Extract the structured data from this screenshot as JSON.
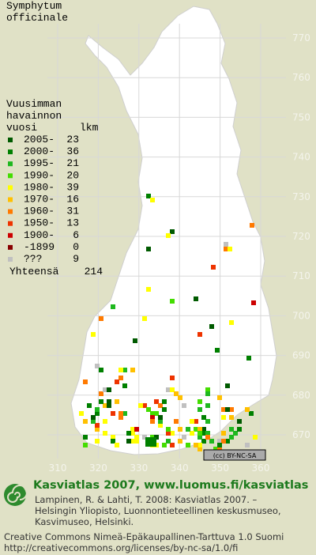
{
  "title": [
    "Symphytum",
    "officinale"
  ],
  "y_grid_labels": [
    770,
    760,
    750,
    740,
    730,
    720,
    710,
    700,
    690,
    680,
    670
  ],
  "x_grid_labels": [
    310,
    320,
    330,
    340,
    350,
    360
  ],
  "legend": {
    "header": [
      "Vuusimman",
      "havainnon",
      "vuosi"
    ],
    "count_header": "lkm",
    "rows": [
      {
        "label": "2005-",
        "count": 23,
        "color": "#005a00"
      },
      {
        "label": "2000-",
        "count": 36,
        "color": "#008000"
      },
      {
        "label": "1995-",
        "count": 21,
        "color": "#1fb81f"
      },
      {
        "label": "1990-",
        "count": 20,
        "color": "#44dd00"
      },
      {
        "label": "1980-",
        "count": 39,
        "color": "#ffff00"
      },
      {
        "label": "1970-",
        "count": 16,
        "color": "#ffc000"
      },
      {
        "label": "1960-",
        "count": 31,
        "color": "#ff7a00"
      },
      {
        "label": "1950-",
        "count": 13,
        "color": "#ee3300"
      },
      {
        "label": "1900-",
        "count": 6,
        "color": "#cc0000"
      },
      {
        "label": "-1899",
        "count": 0,
        "color": "#880000"
      },
      {
        "label": "???",
        "count": 9,
        "color": "#c0c0c0"
      }
    ],
    "total_label": "Yhteensä",
    "total": 214
  },
  "license_badge": "(cc) BY-NC-SA",
  "footer": {
    "heading": "Kasviatlas 2007, www.luomus.fi/kasviatlas",
    "citation": [
      "Lampinen, R. & Lahti, T. 2008: Kasviatlas 2007. –",
      "Helsingin Yliopisto, Luonnontieteellinen keskusmuseo,",
      "Kasvimuseo, Helsinki."
    ],
    "license": [
      "Creative Commons Nimeä-Epäkaupallinen-Tarttuva 1.0 Suomi",
      "http://creativecommons.org/licenses/by-nc-sa/1.0/fi"
    ]
  }
}
